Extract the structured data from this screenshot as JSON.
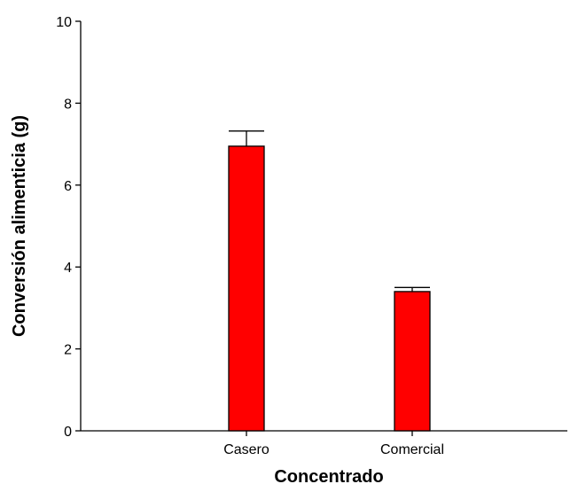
{
  "chart_data": {
    "type": "bar",
    "categories": [
      "Casero",
      "Comercial"
    ],
    "values": [
      6.95,
      3.4
    ],
    "error_upper": [
      7.32,
      3.5
    ],
    "title": "",
    "xlabel": "Concentrado",
    "ylabel": "Conversión alimenticia (g)",
    "ylim": [
      0,
      10
    ],
    "yticks": [
      "0",
      "2",
      "4",
      "6",
      "8",
      "10"
    ],
    "grid": false,
    "bar_color": "#ff0000",
    "bar_edge_color": "#000000"
  }
}
